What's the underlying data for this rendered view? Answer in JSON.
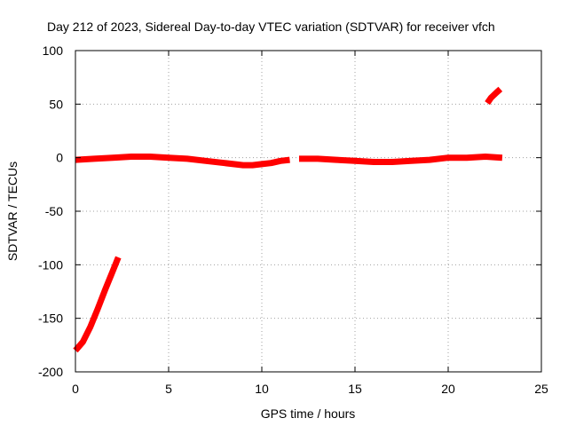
{
  "chart_data": {
    "type": "line",
    "title": "Day 212 of 2023, Sidereal Day-to-day VTEC variation (SDTVAR) for receiver vfch",
    "xlabel": "GPS time / hours",
    "ylabel": "SDTVAR / TECUs",
    "xlim": [
      0,
      25
    ],
    "ylim": [
      -200,
      100
    ],
    "xticks": [
      0,
      5,
      10,
      15,
      20,
      25
    ],
    "yticks": [
      -200,
      -150,
      -100,
      -50,
      0,
      50,
      100
    ],
    "grid": true,
    "series_color": "#ff0000",
    "series": [
      {
        "name": "segment-1",
        "x": [
          0.0,
          0.4,
          0.8,
          1.2,
          1.6,
          2.0,
          2.3
        ],
        "y": [
          -180,
          -172,
          -158,
          -141,
          -123,
          -106,
          -93
        ]
      },
      {
        "name": "segment-2",
        "x": [
          0.0,
          1.0,
          2.0,
          3.0,
          4.0,
          5.0,
          6.0,
          7.0,
          8.0,
          9.0,
          9.5,
          10.0,
          10.5,
          11.0,
          11.5
        ],
        "y": [
          -2,
          -1,
          0,
          1,
          1,
          0,
          -1,
          -3,
          -5,
          -7,
          -7,
          -6,
          -5,
          -3,
          -2
        ]
      },
      {
        "name": "segment-3",
        "x": [
          12.0,
          13.0,
          14.0,
          15.0,
          16.0,
          16.5,
          17.0,
          18.0,
          19.0,
          20.0,
          21.0,
          22.0,
          22.9
        ],
        "y": [
          -1,
          -1,
          -2,
          -3,
          -4,
          -4,
          -4,
          -3,
          -2,
          0,
          0,
          1,
          0
        ]
      },
      {
        "name": "segment-4",
        "x": [
          22.1,
          22.3,
          22.6,
          22.8
        ],
        "y": [
          51,
          56,
          61,
          64
        ]
      }
    ]
  }
}
